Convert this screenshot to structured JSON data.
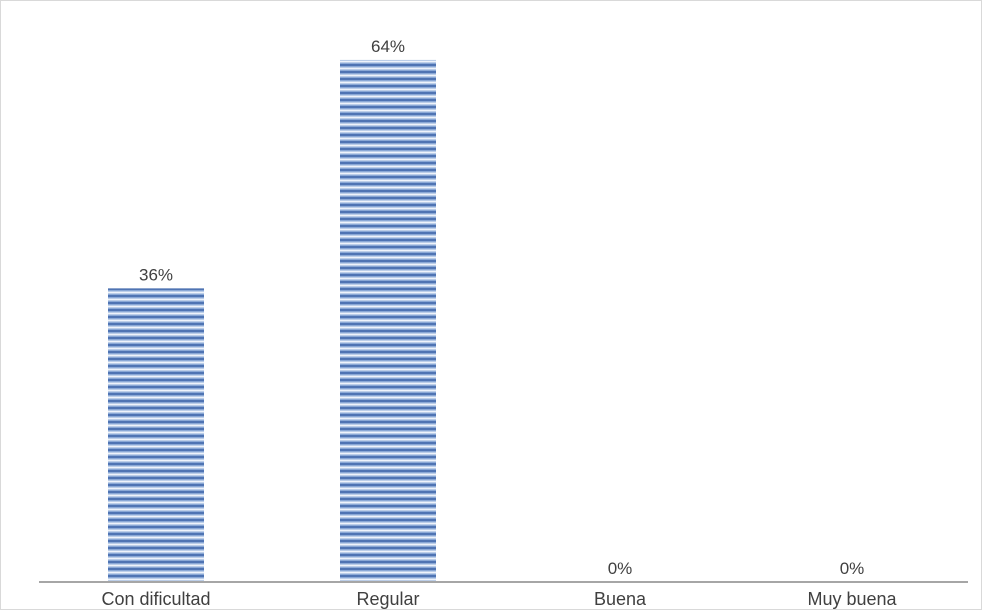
{
  "chart_data": {
    "type": "bar",
    "categories": [
      "Con dificultad",
      "Regular",
      "Buena",
      "Muy buena"
    ],
    "values": [
      36,
      64,
      0,
      0
    ],
    "data_labels": [
      "36%",
      "64%",
      "0%",
      "0%"
    ],
    "title": "",
    "xlabel": "",
    "ylabel": "",
    "ylim": [
      0,
      70
    ],
    "grid": false,
    "legend": "none",
    "bar_color": "#7f9fd0",
    "stripe_color": "#ffffff",
    "axis_color": "#a6a6a6"
  }
}
